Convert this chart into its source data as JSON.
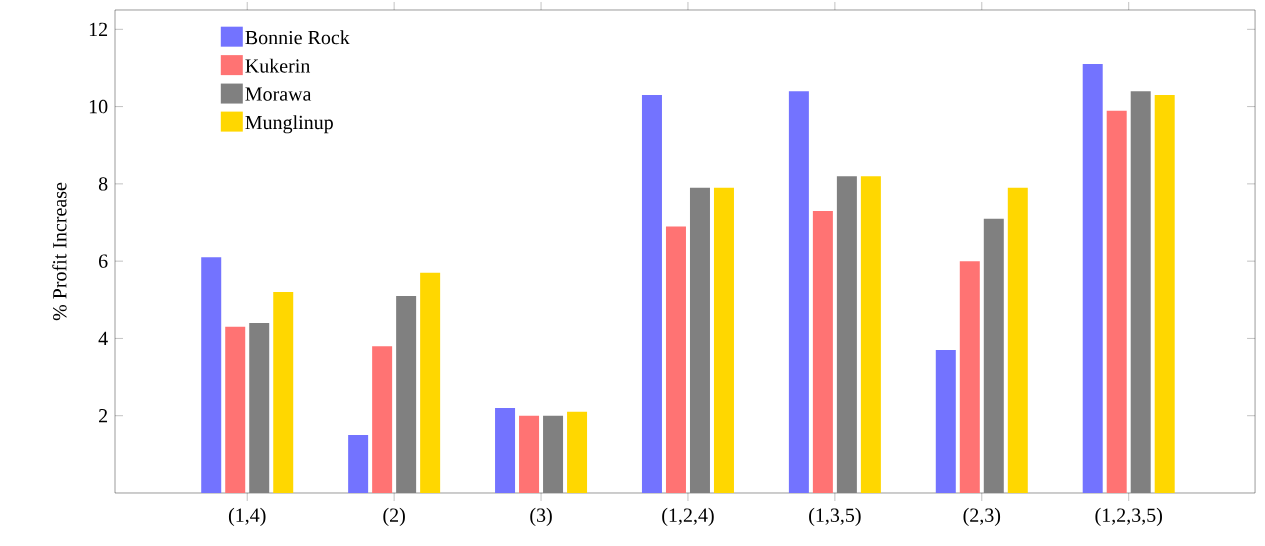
{
  "chart_data": {
    "type": "bar",
    "ylabel": "% Profit Increase",
    "categories": [
      "(1,4)",
      "(2)",
      "(3)",
      "(1,2,4)",
      "(1,3,5)",
      "(2,3)",
      "(1,2,3,5)"
    ],
    "series": [
      {
        "name": "Bonnie Rock",
        "color": "#7373ff",
        "values": [
          6.1,
          1.5,
          2.2,
          10.3,
          10.4,
          3.7,
          11.1
        ]
      },
      {
        "name": "Kukerin",
        "color": "#ff7373",
        "values": [
          4.3,
          3.8,
          2.0,
          6.9,
          7.3,
          6.0,
          9.9
        ]
      },
      {
        "name": "Morawa",
        "color": "#808080",
        "values": [
          4.4,
          5.1,
          2.0,
          7.9,
          8.2,
          7.1,
          10.4
        ]
      },
      {
        "name": "Munglinup",
        "color": "#ffd700",
        "values": [
          5.2,
          5.7,
          2.1,
          7.9,
          8.2,
          7.9,
          10.3
        ]
      }
    ],
    "ylim": [
      0,
      12.5
    ],
    "yticks": [
      2,
      4,
      6,
      8,
      10,
      12
    ],
    "legend": "top left",
    "grid": false
  }
}
